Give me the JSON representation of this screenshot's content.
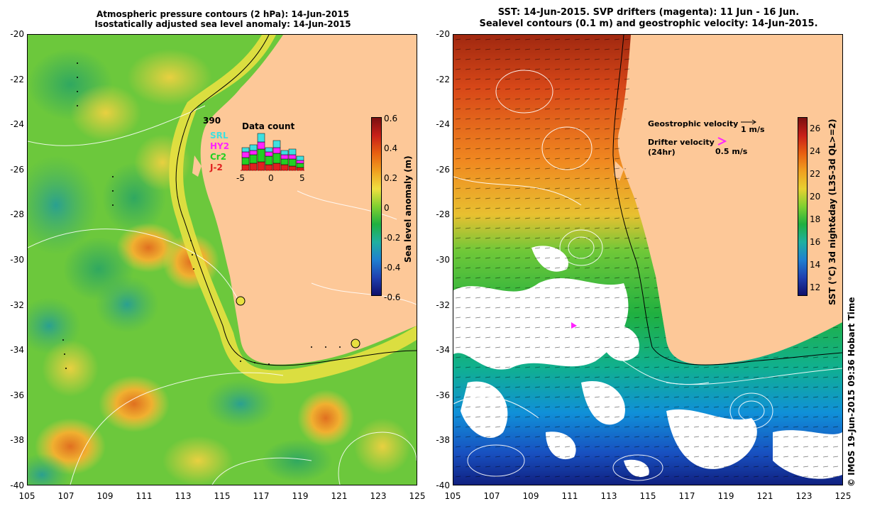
{
  "left": {
    "title_line1": "Atmospheric pressure contours (2 hPa): 14-Jun-2015",
    "title_line2": "Isostatically adjusted sea level anomaly: 14-Jun-2015",
    "y_ticks": [
      "-20",
      "-22",
      "-24",
      "-26",
      "-28",
      "-30",
      "-32",
      "-34",
      "-36",
      "-38",
      "-40"
    ],
    "x_ticks": [
      "105",
      "107",
      "109",
      "111",
      "113",
      "115",
      "117",
      "119",
      "121",
      "123",
      "125"
    ],
    "colorbar": {
      "label": "Sea level anomaly (m)",
      "ticks": [
        "0.6",
        "0.4",
        "0.2",
        "0",
        "-0.2",
        "-0.4",
        "-0.6"
      ]
    },
    "data_count": {
      "title": "Data count",
      "max_value": "390",
      "satellites": [
        {
          "name": "SRL",
          "color": "#3ee0e0"
        },
        {
          "name": "HY2",
          "color": "#ff22ff"
        },
        {
          "name": "Cr2",
          "color": "#22d022"
        },
        {
          "name": "J-2",
          "color": "#e02020"
        }
      ],
      "x_ticks": [
        "-5",
        "0",
        "5"
      ]
    }
  },
  "right": {
    "title_line1": "SST: 14-Jun-2015. SVP drifters (magenta): 11 Jun - 16 Jun.",
    "title_line2": "Sealevel contours (0.1 m) and geostrophic velocity: 14-Jun-2015.",
    "y_ticks": [
      "-20",
      "-22",
      "-24",
      "-26",
      "-28",
      "-30",
      "-32",
      "-34",
      "-36",
      "-38",
      "-40"
    ],
    "x_ticks": [
      "105",
      "107",
      "109",
      "111",
      "113",
      "115",
      "117",
      "119",
      "121",
      "123",
      "125"
    ],
    "colorbar": {
      "label": "SST (°C) 3d night&day (L3S-3d QL>=2)",
      "ticks": [
        "26",
        "24",
        "22",
        "20",
        "18",
        "16",
        "14",
        "12"
      ]
    },
    "legend": {
      "geo_label": "Geostrophic velocity",
      "geo_scale": "1 m/s",
      "drifter_label": "Drifter velocity",
      "drifter_sub": "(24hr)",
      "drifter_scale": "0.5 m/s"
    }
  },
  "credit": "© IMOS 19-Jun-2015 09:36 Hobart Time"
}
